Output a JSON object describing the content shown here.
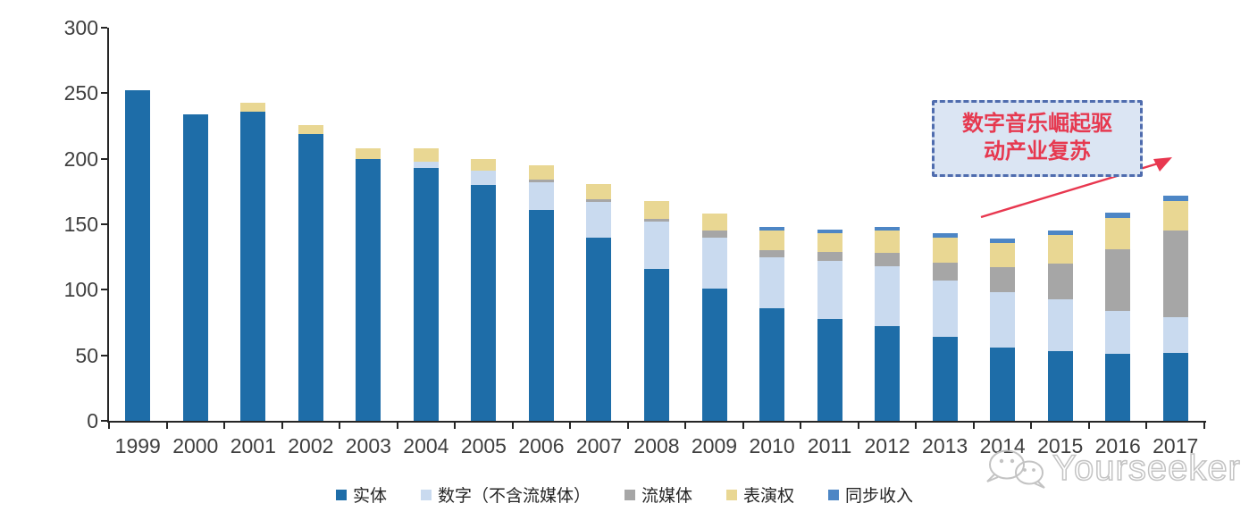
{
  "chart_data": {
    "type": "bar",
    "stacked": true,
    "title": "",
    "xlabel": "",
    "ylabel": "",
    "ylim": [
      0,
      300
    ],
    "yticks": [
      0,
      50,
      100,
      150,
      200,
      250,
      300
    ],
    "grid": false,
    "legend_position": "bottom",
    "categories": [
      "1999",
      "2000",
      "2001",
      "2002",
      "2003",
      "2004",
      "2005",
      "2006",
      "2007",
      "2008",
      "2009",
      "2010",
      "2011",
      "2012",
      "2013",
      "2014",
      "2015",
      "2016",
      "2017"
    ],
    "series": [
      {
        "name": "实体",
        "color": "#1e6da8",
        "values": [
          252,
          234,
          236,
          219,
          200,
          193,
          180,
          161,
          140,
          116,
          101,
          86,
          78,
          72,
          64,
          56,
          53,
          51,
          52
        ]
      },
      {
        "name": "数字（不含流媒体）",
        "color": "#c9daef",
        "values": [
          0,
          0,
          0,
          0,
          0,
          5,
          11,
          21,
          27,
          36,
          39,
          39,
          44,
          46,
          43,
          42,
          40,
          33,
          27
        ]
      },
      {
        "name": "流媒体",
        "color": "#a6a6a6",
        "values": [
          0,
          0,
          0,
          0,
          0,
          0,
          0,
          2,
          2,
          2,
          5,
          5,
          7,
          10,
          14,
          19,
          27,
          47,
          66
        ]
      },
      {
        "name": "表演权",
        "color": "#e9d793",
        "values": [
          0,
          0,
          7,
          7,
          8,
          10,
          9,
          11,
          12,
          14,
          13,
          15,
          14,
          17,
          19,
          19,
          22,
          24,
          23
        ]
      },
      {
        "name": "同步收入",
        "color": "#4d86c5",
        "values": [
          0,
          0,
          0,
          0,
          0,
          0,
          0,
          0,
          0,
          0,
          0,
          3,
          3,
          3,
          3,
          3,
          3,
          4,
          4
        ]
      }
    ]
  },
  "annotation": {
    "line1": "数字音乐崛起驱",
    "line2": "动产业复苏",
    "text_color": "#e63950",
    "border_color": "#4f6cae",
    "fill_color": "#dbe5f3",
    "arrow_color": "#e8374f"
  },
  "watermark": {
    "text": "Yourseeker",
    "icon": "wechat-icon",
    "color": "#c3c3c3"
  }
}
